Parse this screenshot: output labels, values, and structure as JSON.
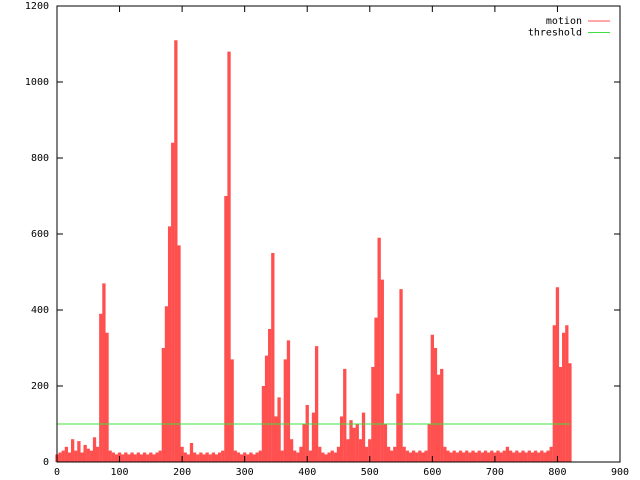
{
  "chart_data": {
    "type": "impulses",
    "xlim": [
      0,
      900
    ],
    "xticks": [
      0,
      100,
      200,
      300,
      400,
      500,
      600,
      700,
      800,
      900
    ],
    "ylim": [
      0,
      1200
    ],
    "yticks": [
      0,
      200,
      400,
      600,
      800,
      1000,
      1200
    ],
    "legend": "top-right",
    "series": [
      {
        "name": "motion",
        "color": "#ff5050",
        "style": "impulses",
        "x": [
          0,
          5,
          10,
          15,
          20,
          25,
          30,
          35,
          40,
          45,
          50,
          55,
          60,
          65,
          70,
          75,
          80,
          85,
          90,
          95,
          100,
          105,
          110,
          115,
          120,
          125,
          130,
          135,
          140,
          145,
          150,
          155,
          160,
          165,
          170,
          175,
          180,
          185,
          190,
          195,
          200,
          205,
          210,
          215,
          220,
          225,
          230,
          235,
          240,
          245,
          250,
          255,
          260,
          265,
          270,
          275,
          280,
          285,
          290,
          295,
          300,
          305,
          310,
          315,
          320,
          325,
          330,
          335,
          340,
          345,
          350,
          355,
          360,
          365,
          370,
          375,
          380,
          385,
          390,
          395,
          400,
          405,
          410,
          415,
          420,
          425,
          430,
          435,
          440,
          445,
          450,
          455,
          460,
          465,
          470,
          475,
          480,
          485,
          490,
          495,
          500,
          505,
          510,
          515,
          520,
          525,
          530,
          535,
          540,
          545,
          550,
          555,
          560,
          565,
          570,
          575,
          580,
          585,
          590,
          595,
          600,
          605,
          610,
          615,
          620,
          625,
          630,
          635,
          640,
          645,
          650,
          655,
          660,
          665,
          670,
          675,
          680,
          685,
          690,
          695,
          700,
          705,
          710,
          715,
          720,
          725,
          730,
          735,
          740,
          745,
          750,
          755,
          760,
          765,
          770,
          775,
          780,
          785,
          790,
          795,
          800,
          805,
          810,
          815,
          820
        ],
        "values": [
          20,
          25,
          30,
          40,
          25,
          60,
          30,
          55,
          25,
          45,
          35,
          30,
          65,
          40,
          390,
          470,
          340,
          30,
          25,
          20,
          25,
          20,
          25,
          20,
          25,
          20,
          25,
          20,
          25,
          20,
          25,
          20,
          25,
          30,
          300,
          410,
          620,
          840,
          1110,
          570,
          40,
          25,
          20,
          50,
          25,
          20,
          25,
          20,
          25,
          20,
          25,
          20,
          25,
          30,
          700,
          1080,
          270,
          30,
          25,
          20,
          25,
          20,
          25,
          20,
          25,
          30,
          200,
          280,
          350,
          550,
          120,
          170,
          30,
          270,
          320,
          60,
          30,
          25,
          40,
          100,
          150,
          30,
          130,
          305,
          40,
          25,
          20,
          25,
          30,
          25,
          40,
          120,
          245,
          60,
          110,
          90,
          100,
          60,
          130,
          40,
          60,
          250,
          380,
          590,
          480,
          100,
          40,
          30,
          40,
          180,
          455,
          40,
          30,
          25,
          30,
          25,
          30,
          25,
          30,
          100,
          335,
          300,
          230,
          245,
          40,
          30,
          25,
          30,
          25,
          30,
          25,
          30,
          25,
          30,
          25,
          30,
          25,
          30,
          25,
          30,
          25,
          30,
          25,
          30,
          40,
          30,
          25,
          30,
          25,
          30,
          25,
          30,
          25,
          30,
          25,
          30,
          25,
          30,
          40,
          360,
          460,
          250,
          340,
          360,
          260
        ]
      },
      {
        "name": "threshold",
        "color": "#40e040",
        "style": "line",
        "x": [
          0,
          820
        ],
        "values": [
          100,
          100
        ]
      }
    ]
  }
}
